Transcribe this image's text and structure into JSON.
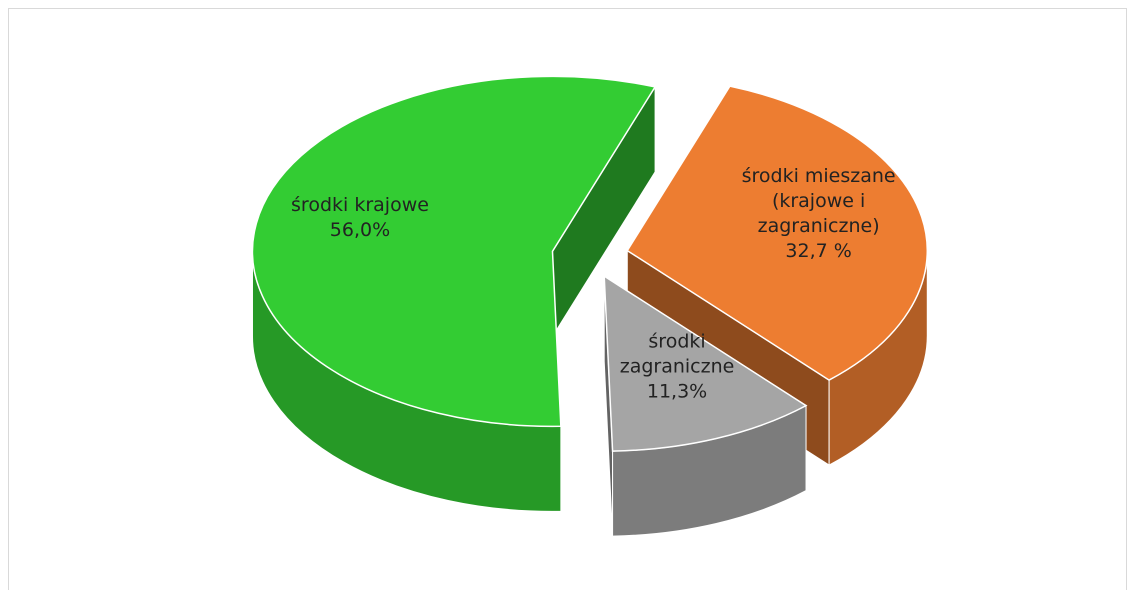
{
  "chart_data": {
    "type": "pie",
    "categories": [
      "środki krajowe",
      "środki mieszane (krajowe i zagraniczne)",
      "środki zagraniczne"
    ],
    "values": [
      56.0,
      32.7,
      11.3
    ],
    "value_labels": [
      "56,0%",
      "32,7 %",
      "11,3%"
    ],
    "colors": [
      "#33cc33",
      "#ed7d31",
      "#a5a5a5"
    ]
  }
}
